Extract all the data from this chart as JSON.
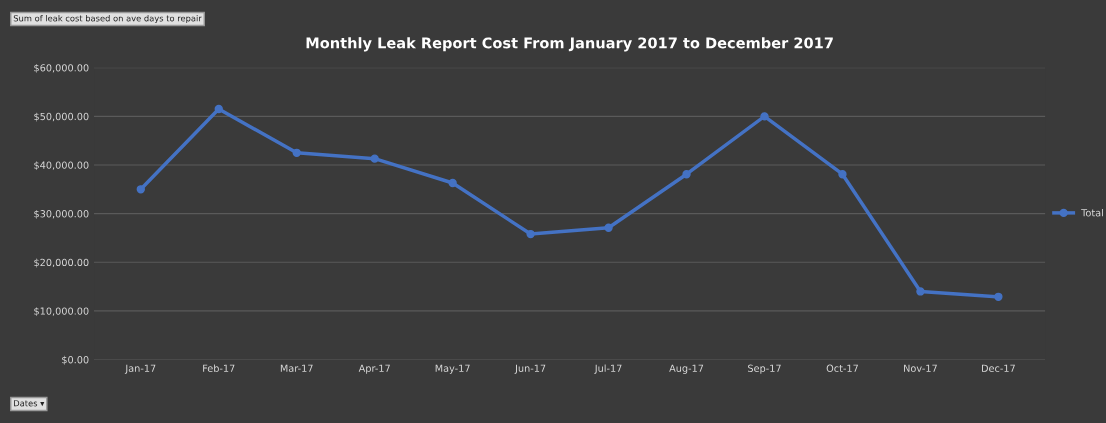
{
  "chart_data": {
    "type": "line",
    "title": "Monthly Leak Report Cost From January 2017 to December 2017",
    "categories": [
      "Jan-17",
      "Feb-17",
      "Mar-17",
      "Apr-17",
      "May-17",
      "Jun-17",
      "Jul-17",
      "Aug-17",
      "Sep-17",
      "Oct-17",
      "Nov-17",
      "Dec-17"
    ],
    "series": [
      {
        "name": "Total",
        "color": "#4472c4",
        "values": [
          35000,
          51500,
          42500,
          41300,
          36300,
          25800,
          27100,
          38100,
          50000,
          38100,
          14000,
          12900
        ]
      }
    ],
    "ylim": [
      0,
      60000
    ],
    "yticks": [
      {
        "value": 0,
        "label": "$0.00"
      },
      {
        "value": 10000,
        "label": "$10,000.00"
      },
      {
        "value": 20000,
        "label": "$20,000.00"
      },
      {
        "value": 30000,
        "label": "$30,000.00"
      },
      {
        "value": 40000,
        "label": "$40,000.00"
      },
      {
        "value": 50000,
        "label": "$50,000.00"
      },
      {
        "value": 60000,
        "label": "$60,000.00"
      }
    ],
    "grid": "y",
    "legend": "right",
    "marker": "circle",
    "line_style": "solid",
    "annotations": [
      "Sum of leak cost based on ave days to repair",
      "Dates ▾"
    ]
  }
}
